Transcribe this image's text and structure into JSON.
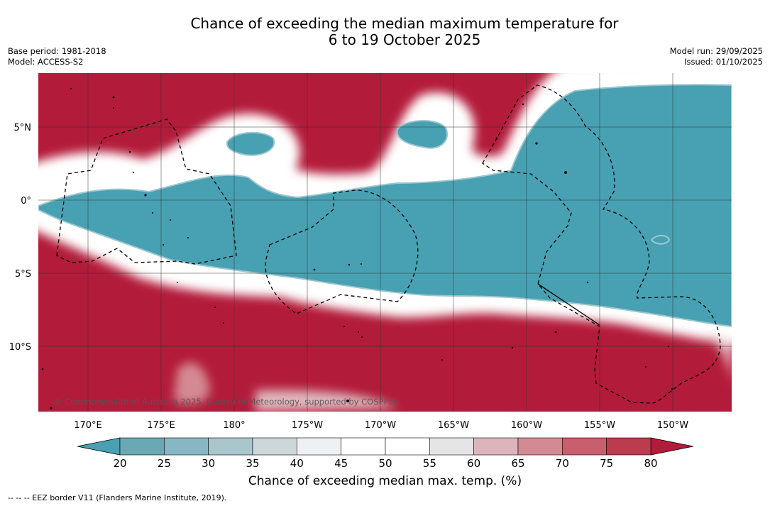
{
  "header": {
    "title_line1": "Chance of exceeding the median maximum temperature for",
    "title_line2": "6 to 19 October 2025",
    "base_period": "Base period: 1981-2018",
    "model": "Model: ACCESS-S2",
    "model_run": "Model run: 29/09/2025",
    "issued": "Issued: 01/10/2025"
  },
  "map": {
    "lat_labels": [
      "5°N",
      "0°",
      "5°S",
      "10°S"
    ],
    "lon_labels": [
      "170°E",
      "175°E",
      "180°",
      "175°W",
      "170°W",
      "165°W",
      "160°W",
      "155°W",
      "150°W"
    ],
    "copyright": "© Commonwealth of Australia 2025, Bureau of Meteorology, supported by COSPPac",
    "colors": {
      "above_high": "#b31b3a",
      "below_low": "#48a1b2",
      "grid": "#333333"
    }
  },
  "colorbar": {
    "ticks": [
      "20",
      "25",
      "30",
      "35",
      "40",
      "45",
      "50",
      "55",
      "60",
      "65",
      "70",
      "75",
      "80"
    ],
    "segment_colors": [
      "#6aa8b4",
      "#86b7c2",
      "#a8c6cb",
      "#cdd6d9",
      "#eef1f3",
      "#ffffff",
      "#ffffff",
      "#e6e4e6",
      "#ddb4bb",
      "#d48a93",
      "#c75f6c",
      "#bb3c4f"
    ],
    "low_extend_color": "#48a1b2",
    "high_extend_color": "#b31b3a",
    "title": "Chance of exceeding median max. temp. (%)"
  },
  "footer": {
    "eez_note": "--  --  -- EEZ border V11 (Flanders Marine Institute, 2019)."
  }
}
